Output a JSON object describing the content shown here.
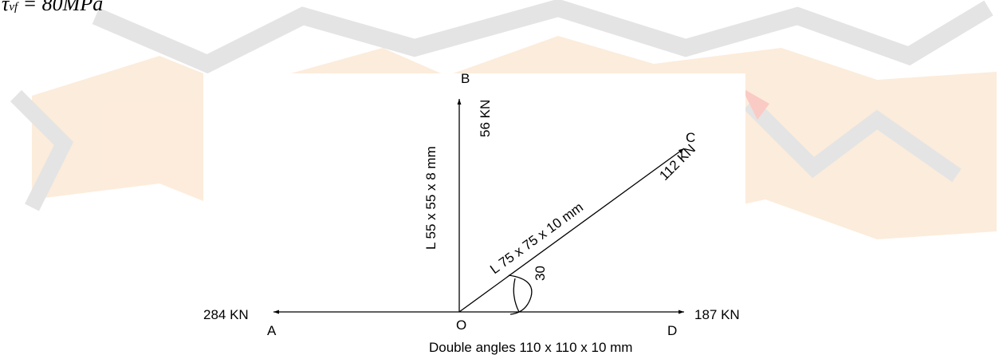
{
  "header": {
    "leading": "",
    "symbol": "τ",
    "subscript": "vf",
    "equation": "= 80MPa"
  },
  "diagram": {
    "points": {
      "A": "A",
      "B": "B",
      "C": "C",
      "D": "D",
      "O": "O"
    },
    "forces": {
      "A": "284 KN",
      "B": "56 KN",
      "C": "112 KN",
      "D": "187 KN"
    },
    "members": {
      "OB": "L 55 x 55 x 8 mm",
      "OC": "L 75 x 75 x 10 mm",
      "AD": "Double angles 110 x 110 x 10 mm"
    },
    "angle_label": "30"
  },
  "colors": {
    "line": "#000000",
    "watermark_orange": "#f8c99a",
    "watermark_grey": "#b5b5b5"
  }
}
